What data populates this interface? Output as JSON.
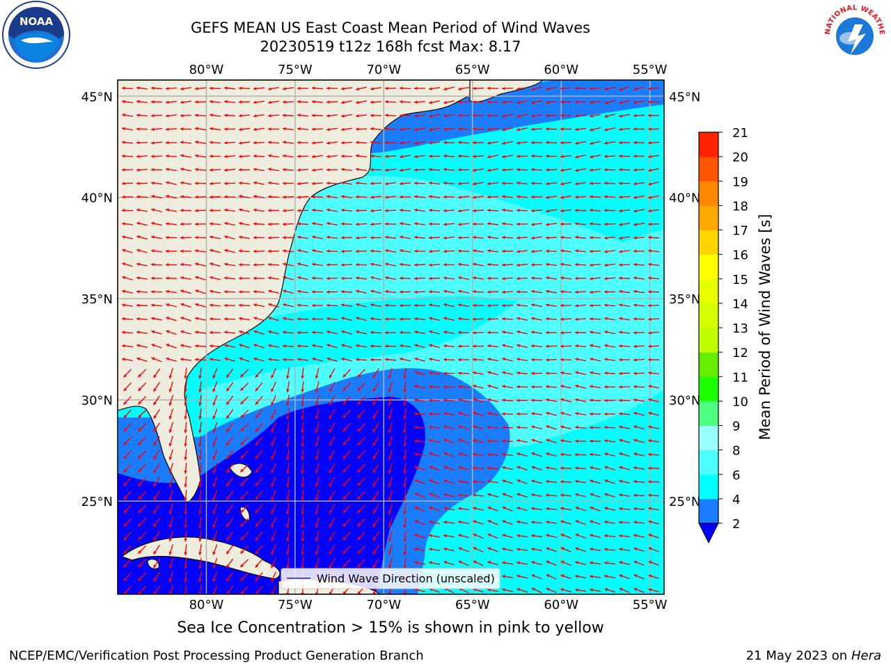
{
  "header": {
    "title_line1": "GEFS MEAN US East Coast Mean Period of Wind Waves",
    "title_line2": "20230519 t12z 168h fcst   Max: 8.17"
  },
  "logos": {
    "left": {
      "icon": "noaa-logo",
      "text": "NOAA"
    },
    "right": {
      "icon": "nws-logo",
      "text": "NATIONAL WEATHER SERVICE"
    }
  },
  "map": {
    "projection": "plate-carree",
    "lon_range": [
      -85,
      -54.2
    ],
    "lat_range": [
      20.4,
      45.8
    ],
    "lon_ticks": [
      -80,
      -75,
      -70,
      -65,
      -60,
      -55
    ],
    "lat_ticks": [
      25,
      30,
      35,
      40,
      45
    ],
    "lon_tick_labels": [
      "80°W",
      "75°W",
      "70°W",
      "65°W",
      "60°W",
      "55°W"
    ],
    "lat_tick_labels": [
      "25°N",
      "30°N",
      "35°N",
      "40°N",
      "45°N"
    ],
    "grid": true,
    "land_color": "#efedde",
    "legend": {
      "label": "Wind Wave Direction (unscaled)",
      "position": "bottom-center"
    },
    "arrow_color": "#ff0000"
  },
  "colorbar": {
    "label": "Mean Period of Wind Waves [s]",
    "ticks": [
      "2",
      "4",
      "6",
      "8",
      "9",
      "10",
      "11",
      "12",
      "13",
      "14",
      "15",
      "16",
      "17",
      "18",
      "19",
      "20",
      "21"
    ],
    "colors": [
      "#1a7cff",
      "#00ffff",
      "#4dffff",
      "#99ffff",
      "#4dff80",
      "#19ff00",
      "#66ee00",
      "#c0ff00",
      "#d5ff00",
      "#e8ff00",
      "#ffff00",
      "#ffd400",
      "#ffaa00",
      "#ff8800",
      "#ff5500",
      "#ff2200"
    ],
    "extend_color": "#0000ff"
  },
  "footer": {
    "note": "Sea Ice Concentration > 15% is shown in pink to yellow",
    "credit": "NCEP/EMC/Verification Post Processing Product Generation Branch",
    "date": "21 May 2023 on",
    "machine": "Hera"
  }
}
